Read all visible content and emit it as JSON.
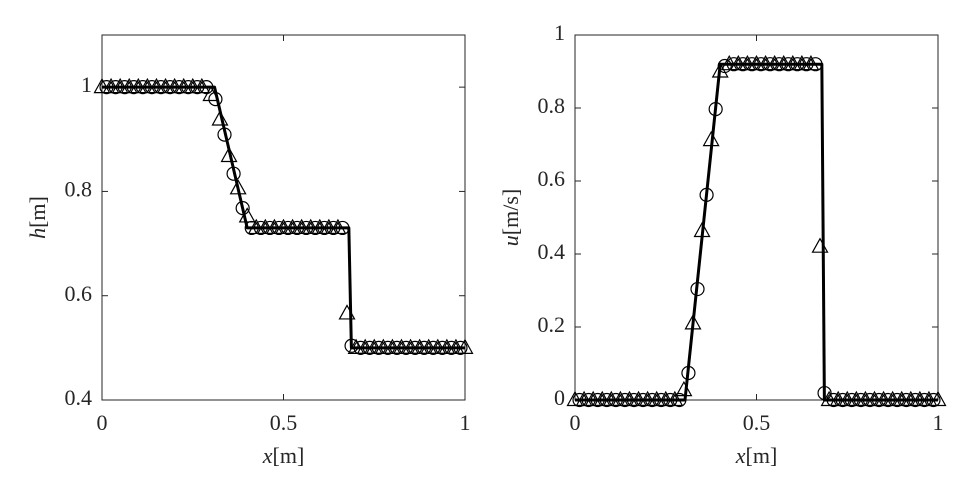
{
  "chart_data": [
    {
      "type": "line",
      "xlabel": {
        "symbol": "x",
        "unit": "[m]"
      },
      "ylabel": {
        "symbol": "h",
        "unit": "[m]"
      },
      "xlim": [
        0,
        1
      ],
      "ylim": [
        0.4,
        1.1
      ],
      "xticks": [
        0,
        0.5,
        1
      ],
      "yticks": [
        0.4,
        0.6,
        0.8,
        1
      ],
      "series": [
        {
          "color": "#000000",
          "marker": "none",
          "x": [
            0,
            0.31,
            0.4,
            0.68,
            0.687,
            1
          ],
          "values": [
            1,
            1,
            0.73,
            0.73,
            0.5,
            0.5
          ]
        },
        {
          "color": "#000000",
          "marker": "circle",
          "x": [
            0.0125,
            0.0375,
            0.0625,
            0.0875,
            0.1125,
            0.1375,
            0.1625,
            0.1875,
            0.2125,
            0.2375,
            0.2625,
            0.2875,
            0.3125,
            0.3375,
            0.3625,
            0.3875,
            0.4125,
            0.4375,
            0.4625,
            0.4875,
            0.5125,
            0.5375,
            0.5625,
            0.5875,
            0.6125,
            0.6375,
            0.6625,
            0.6875,
            0.7125,
            0.7375,
            0.7625,
            0.7875,
            0.8125,
            0.8375,
            0.8625,
            0.8875,
            0.9125,
            0.9375,
            0.9625,
            0.9875
          ],
          "values": [
            1,
            1,
            1,
            1,
            1,
            1,
            1,
            1,
            1,
            1,
            1,
            1,
            0.977,
            0.909,
            0.834,
            0.768,
            0.73,
            0.73,
            0.73,
            0.73,
            0.73,
            0.73,
            0.73,
            0.73,
            0.73,
            0.73,
            0.73,
            0.504,
            0.5,
            0.5,
            0.5,
            0.5,
            0.5,
            0.5,
            0.5,
            0.5,
            0.5,
            0.5,
            0.5,
            0.5
          ]
        },
        {
          "color": "#000000",
          "marker": "triangle",
          "x": [
            0,
            0.025,
            0.05,
            0.075,
            0.1,
            0.125,
            0.15,
            0.175,
            0.2,
            0.225,
            0.25,
            0.275,
            0.3,
            0.325,
            0.35,
            0.375,
            0.4,
            0.425,
            0.45,
            0.475,
            0.5,
            0.525,
            0.55,
            0.575,
            0.6,
            0.625,
            0.65,
            0.675,
            0.7,
            0.725,
            0.75,
            0.775,
            0.8,
            0.825,
            0.85,
            0.875,
            0.9,
            0.925,
            0.95,
            0.975,
            1
          ],
          "values": [
            1,
            1,
            1,
            1,
            1,
            1,
            1,
            1,
            1,
            1,
            1,
            1,
            0.985,
            0.938,
            0.868,
            0.806,
            0.752,
            0.73,
            0.73,
            0.73,
            0.73,
            0.73,
            0.73,
            0.73,
            0.73,
            0.73,
            0.73,
            0.566,
            0.5,
            0.5,
            0.5,
            0.5,
            0.5,
            0.5,
            0.5,
            0.5,
            0.5,
            0.5,
            0.5,
            0.5,
            0.5
          ]
        }
      ]
    },
    {
      "type": "line",
      "xlabel": {
        "symbol": "x",
        "unit": "[m]"
      },
      "ylabel": {
        "symbol": "u",
        "unit": "[m/s]"
      },
      "xlim": [
        0,
        1
      ],
      "ylim": [
        0,
        1
      ],
      "xticks": [
        0,
        0.5,
        1
      ],
      "yticks": [
        0,
        0.2,
        0.4,
        0.6,
        0.8,
        1
      ],
      "series": [
        {
          "color": "#000000",
          "marker": "none",
          "x": [
            0,
            0.303,
            0.4,
            0.68,
            0.687,
            1
          ],
          "values": [
            0,
            0,
            0.92,
            0.92,
            0,
            0
          ]
        },
        {
          "color": "#000000",
          "marker": "circle",
          "x": [
            0.0125,
            0.0375,
            0.0625,
            0.0875,
            0.1125,
            0.1375,
            0.1625,
            0.1875,
            0.2125,
            0.2375,
            0.2625,
            0.2875,
            0.3125,
            0.3375,
            0.3625,
            0.3875,
            0.4125,
            0.4375,
            0.4625,
            0.4875,
            0.5125,
            0.5375,
            0.5625,
            0.5875,
            0.6125,
            0.6375,
            0.6625,
            0.6875,
            0.7125,
            0.7375,
            0.7625,
            0.7875,
            0.8125,
            0.8375,
            0.8625,
            0.8875,
            0.9125,
            0.9375,
            0.9625,
            0.9875
          ],
          "values": [
            0,
            0,
            0,
            0,
            0,
            0,
            0,
            0,
            0,
            0,
            0,
            0,
            0.074,
            0.304,
            0.562,
            0.797,
            0.915,
            0.92,
            0.92,
            0.92,
            0.92,
            0.92,
            0.92,
            0.92,
            0.92,
            0.92,
            0.92,
            0.019,
            0,
            0,
            0,
            0,
            0,
            0,
            0,
            0,
            0,
            0,
            0,
            0
          ]
        },
        {
          "color": "#000000",
          "marker": "triangle",
          "x": [
            0,
            0.025,
            0.05,
            0.075,
            0.1,
            0.125,
            0.15,
            0.175,
            0.2,
            0.225,
            0.25,
            0.275,
            0.3,
            0.325,
            0.35,
            0.375,
            0.4,
            0.425,
            0.45,
            0.475,
            0.5,
            0.525,
            0.55,
            0.575,
            0.6,
            0.625,
            0.65,
            0.675,
            0.7,
            0.725,
            0.75,
            0.775,
            0.8,
            0.825,
            0.85,
            0.875,
            0.9,
            0.925,
            0.95,
            0.975,
            1
          ],
          "values": [
            0,
            0,
            0,
            0,
            0,
            0,
            0,
            0,
            0,
            0,
            0,
            0,
            0.027,
            0.21,
            0.463,
            0.712,
            0.9,
            0.92,
            0.92,
            0.92,
            0.92,
            0.92,
            0.92,
            0.92,
            0.92,
            0.92,
            0.92,
            0.42,
            0,
            0,
            0,
            0,
            0,
            0,
            0,
            0,
            0,
            0,
            0,
            0,
            0
          ]
        }
      ]
    }
  ]
}
